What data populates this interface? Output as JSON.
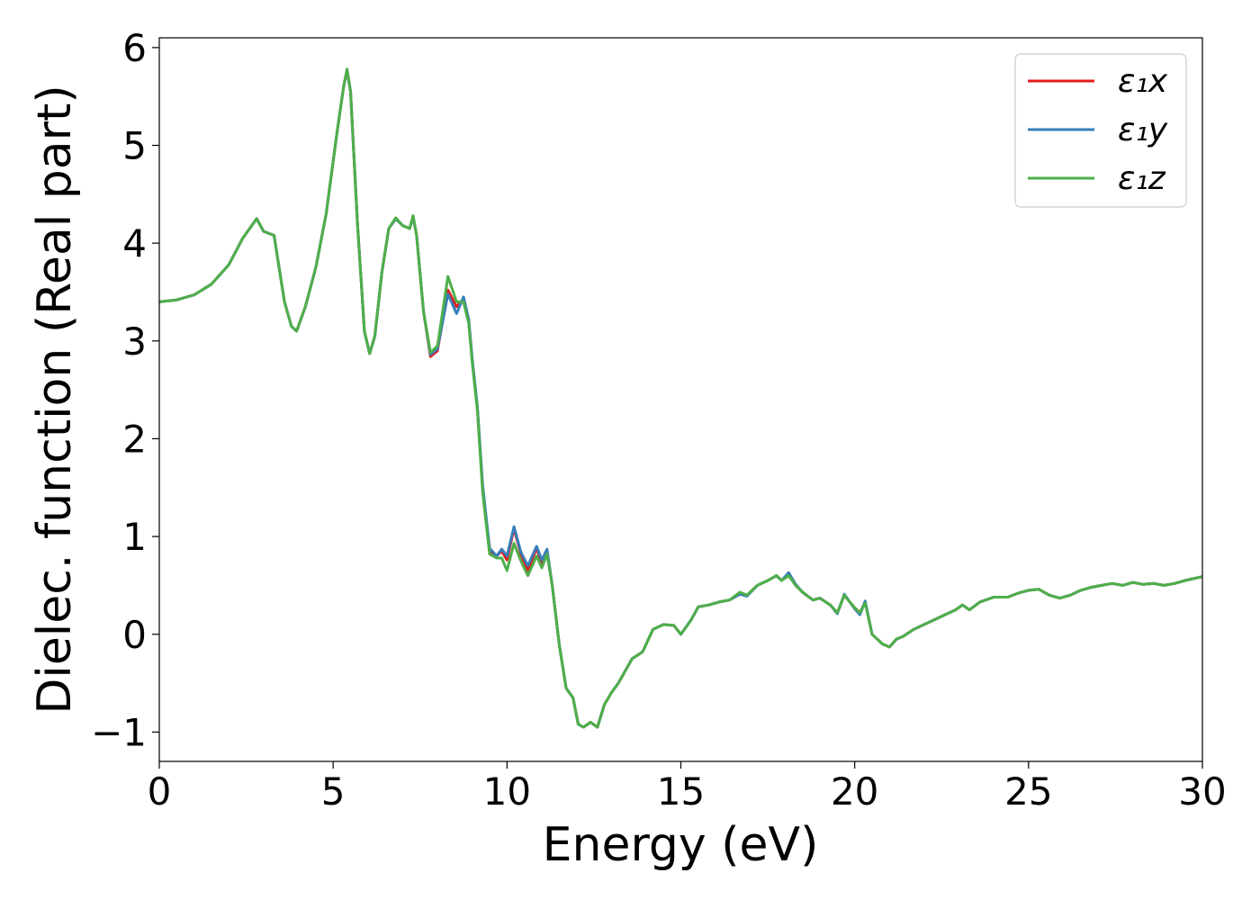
{
  "chart_data": {
    "type": "line",
    "xlabel": "Energy (eV)",
    "ylabel": "Dielec. function (Real part)",
    "xlim": [
      0,
      30
    ],
    "ylim": [
      -1.3,
      6.1
    ],
    "xticks": [
      "0",
      "5",
      "10",
      "15",
      "20",
      "25",
      "30"
    ],
    "yticks": [
      "−1",
      "0",
      "1",
      "2",
      "3",
      "4",
      "5",
      "6"
    ],
    "grid": false,
    "legend_position": "top-right",
    "x": [
      0,
      0.5,
      1,
      1.5,
      2,
      2.4,
      2.8,
      3.0,
      3.3,
      3.6,
      3.8,
      3.95,
      4.2,
      4.5,
      4.8,
      5.1,
      5.3,
      5.4,
      5.5,
      5.7,
      5.9,
      6.05,
      6.2,
      6.4,
      6.6,
      6.8,
      7.0,
      7.2,
      7.3,
      7.4,
      7.6,
      7.8,
      8.0,
      8.3,
      8.55,
      8.75,
      8.9,
      9.0,
      9.15,
      9.3,
      9.5,
      9.7,
      9.85,
      10.0,
      10.2,
      10.4,
      10.6,
      10.85,
      11.0,
      11.15,
      11.3,
      11.5,
      11.7,
      11.9,
      12.05,
      12.2,
      12.4,
      12.6,
      12.8,
      13.0,
      13.2,
      13.6,
      13.9,
      14.2,
      14.5,
      14.8,
      15.0,
      15.3,
      15.5,
      15.8,
      16.1,
      16.4,
      16.7,
      16.9,
      17.2,
      17.5,
      17.75,
      17.9,
      18.1,
      18.3,
      18.5,
      18.8,
      19.0,
      19.3,
      19.5,
      19.7,
      20.0,
      20.15,
      20.3,
      20.5,
      20.8,
      21.0,
      21.2,
      21.4,
      21.7,
      22.0,
      22.3,
      22.6,
      22.9,
      23.1,
      23.3,
      23.6,
      24.0,
      24.4,
      24.7,
      25.0,
      25.3,
      25.6,
      25.9,
      26.2,
      26.5,
      26.8,
      27.1,
      27.4,
      27.7,
      28.0,
      28.3,
      28.6,
      28.9,
      29.2,
      29.5,
      30.0
    ],
    "series": [
      {
        "name": "ε₁x",
        "color": "#e41a1c",
        "values": [
          3.4,
          3.42,
          3.47,
          3.58,
          3.78,
          4.05,
          4.25,
          4.12,
          4.08,
          3.4,
          3.15,
          3.1,
          3.35,
          3.75,
          4.3,
          5.1,
          5.6,
          5.77,
          5.55,
          4.2,
          3.1,
          2.87,
          3.05,
          3.7,
          4.15,
          4.25,
          4.18,
          4.15,
          4.27,
          4.08,
          3.3,
          2.84,
          2.9,
          3.52,
          3.35,
          3.43,
          3.2,
          2.8,
          2.3,
          1.5,
          0.85,
          0.8,
          0.85,
          0.76,
          1.08,
          0.82,
          0.65,
          0.88,
          0.73,
          0.85,
          0.5,
          -0.1,
          -0.55,
          -0.65,
          -0.92,
          -0.95,
          -0.9,
          -0.95,
          -0.72,
          -0.6,
          -0.5,
          -0.25,
          -0.18,
          0.05,
          0.1,
          0.09,
          0.0,
          0.15,
          0.28,
          0.3,
          0.33,
          0.35,
          0.42,
          0.4,
          0.5,
          0.55,
          0.6,
          0.55,
          0.62,
          0.5,
          0.43,
          0.35,
          0.37,
          0.3,
          0.22,
          0.4,
          0.27,
          0.22,
          0.33,
          0.0,
          -0.1,
          -0.13,
          -0.05,
          -0.02,
          0.05,
          0.1,
          0.15,
          0.2,
          0.25,
          0.3,
          0.25,
          0.33,
          0.38,
          0.38,
          0.42,
          0.45,
          0.46,
          0.4,
          0.37,
          0.4,
          0.45,
          0.48,
          0.5,
          0.52,
          0.5,
          0.53,
          0.51,
          0.52,
          0.5,
          0.52,
          0.55,
          0.59
        ]
      },
      {
        "name": "ε₁y",
        "color": "#377eb8",
        "values": [
          3.4,
          3.42,
          3.47,
          3.58,
          3.78,
          4.05,
          4.25,
          4.12,
          4.08,
          3.4,
          3.15,
          3.1,
          3.35,
          3.75,
          4.3,
          5.1,
          5.6,
          5.77,
          5.55,
          4.2,
          3.1,
          2.87,
          3.05,
          3.7,
          4.15,
          4.25,
          4.18,
          4.15,
          4.27,
          4.08,
          3.3,
          2.86,
          2.92,
          3.48,
          3.28,
          3.45,
          3.22,
          2.82,
          2.32,
          1.52,
          0.88,
          0.8,
          0.87,
          0.8,
          1.1,
          0.84,
          0.7,
          0.9,
          0.76,
          0.87,
          0.5,
          -0.1,
          -0.55,
          -0.65,
          -0.92,
          -0.95,
          -0.9,
          -0.95,
          -0.72,
          -0.6,
          -0.5,
          -0.25,
          -0.18,
          0.05,
          0.1,
          0.09,
          0.0,
          0.15,
          0.28,
          0.3,
          0.33,
          0.35,
          0.41,
          0.39,
          0.5,
          0.55,
          0.6,
          0.55,
          0.63,
          0.51,
          0.43,
          0.35,
          0.37,
          0.3,
          0.21,
          0.41,
          0.26,
          0.2,
          0.34,
          0.0,
          -0.1,
          -0.13,
          -0.05,
          -0.02,
          0.05,
          0.1,
          0.15,
          0.2,
          0.25,
          0.3,
          0.25,
          0.33,
          0.38,
          0.38,
          0.42,
          0.45,
          0.46,
          0.4,
          0.37,
          0.4,
          0.45,
          0.48,
          0.5,
          0.52,
          0.5,
          0.53,
          0.51,
          0.52,
          0.5,
          0.52,
          0.55,
          0.59
        ]
      },
      {
        "name": "ε₁z",
        "color": "#4daf4a",
        "values": [
          3.4,
          3.42,
          3.47,
          3.58,
          3.78,
          4.05,
          4.25,
          4.12,
          4.08,
          3.4,
          3.15,
          3.1,
          3.35,
          3.75,
          4.3,
          5.1,
          5.6,
          5.78,
          5.55,
          4.2,
          3.1,
          2.87,
          3.05,
          3.7,
          4.15,
          4.26,
          4.18,
          4.15,
          4.28,
          4.08,
          3.3,
          2.88,
          2.95,
          3.66,
          3.4,
          3.4,
          3.18,
          2.78,
          2.28,
          1.45,
          0.82,
          0.78,
          0.78,
          0.65,
          0.93,
          0.75,
          0.6,
          0.8,
          0.68,
          0.82,
          0.5,
          -0.1,
          -0.55,
          -0.65,
          -0.92,
          -0.95,
          -0.9,
          -0.95,
          -0.72,
          -0.6,
          -0.5,
          -0.25,
          -0.18,
          0.05,
          0.1,
          0.09,
          0.0,
          0.15,
          0.28,
          0.3,
          0.33,
          0.35,
          0.43,
          0.4,
          0.5,
          0.55,
          0.6,
          0.55,
          0.6,
          0.5,
          0.43,
          0.35,
          0.37,
          0.3,
          0.22,
          0.4,
          0.27,
          0.22,
          0.32,
          0.0,
          -0.1,
          -0.13,
          -0.05,
          -0.02,
          0.05,
          0.1,
          0.15,
          0.2,
          0.25,
          0.3,
          0.25,
          0.33,
          0.38,
          0.38,
          0.42,
          0.45,
          0.46,
          0.4,
          0.37,
          0.4,
          0.45,
          0.48,
          0.5,
          0.52,
          0.5,
          0.53,
          0.51,
          0.52,
          0.5,
          0.52,
          0.55,
          0.59
        ]
      }
    ]
  }
}
